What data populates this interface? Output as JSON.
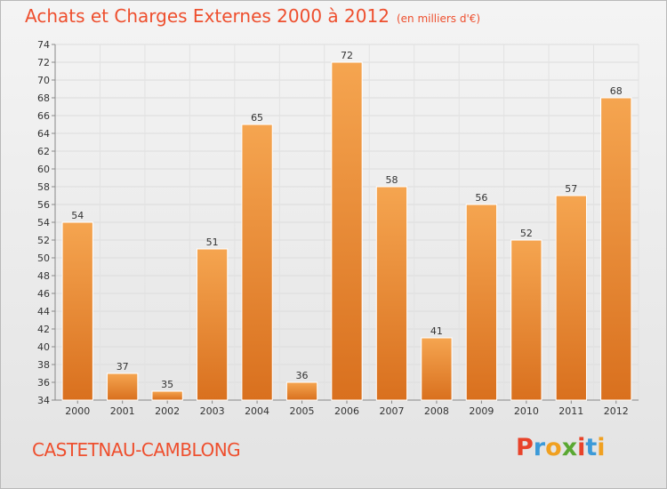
{
  "header": {
    "title": "Achats et Charges Externes 2000 à 2012",
    "subtitle": "(en milliers d'€)"
  },
  "footer": {
    "town": "CASTETNAU-CAMBLONG",
    "brand": [
      "P",
      "r",
      "o",
      "x",
      "i",
      "t",
      "i"
    ],
    "brand_colors": [
      "#e8432a",
      "#3c9ad8",
      "#f0a020",
      "#5aa832",
      "#e8432a",
      "#3c9ad8",
      "#f0a020"
    ]
  },
  "colors": {
    "bar_light": "#f5a550",
    "bar_dark": "#d9701e",
    "title": "#ee4f2e"
  },
  "chart_data": {
    "type": "bar",
    "title": "Achats et Charges Externes 2000 à 2012",
    "subtitle": "(en milliers d'€)",
    "categories": [
      "2000",
      "2001",
      "2002",
      "2003",
      "2004",
      "2005",
      "2006",
      "2007",
      "2008",
      "2009",
      "2010",
      "2011",
      "2012"
    ],
    "values": [
      54,
      37,
      35,
      51,
      65,
      36,
      72,
      58,
      41,
      56,
      52,
      57,
      68
    ],
    "ylim": [
      34,
      74
    ],
    "yticks": [
      34,
      36,
      38,
      40,
      42,
      44,
      46,
      48,
      50,
      52,
      54,
      56,
      58,
      60,
      62,
      64,
      66,
      68,
      70,
      72,
      74
    ],
    "grid": true,
    "legend": "none"
  }
}
